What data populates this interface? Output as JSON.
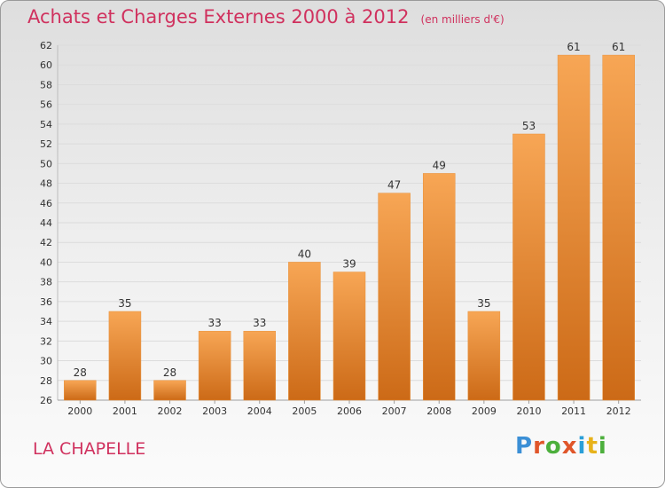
{
  "header": {
    "title": "Achats et Charges Externes 2000 à 2012",
    "unit": "(en milliers d'€)"
  },
  "footer": {
    "commune": "LA CHAPELLE",
    "brand": "Proxiti"
  },
  "colors": {
    "title": "#d0315e",
    "bar_light": "#f7a655",
    "bar_dark": "#cc6a17",
    "grid": "#dcdcdc"
  },
  "chart_data": {
    "type": "bar",
    "title": "Achats et Charges Externes 2000 à 2012",
    "ylabel": "en milliers d'€",
    "xlabel": "",
    "categories": [
      "2000",
      "2001",
      "2002",
      "2003",
      "2004",
      "2005",
      "2006",
      "2007",
      "2008",
      "2009",
      "2010",
      "2011",
      "2012"
    ],
    "values": [
      28,
      35,
      28,
      33,
      33,
      40,
      39,
      47,
      49,
      35,
      53,
      61,
      61
    ],
    "ylim": [
      26,
      62
    ],
    "yticks": [
      26,
      28,
      30,
      32,
      34,
      36,
      38,
      40,
      42,
      44,
      46,
      48,
      50,
      52,
      54,
      56,
      58,
      60,
      62
    ],
    "grid": true
  }
}
